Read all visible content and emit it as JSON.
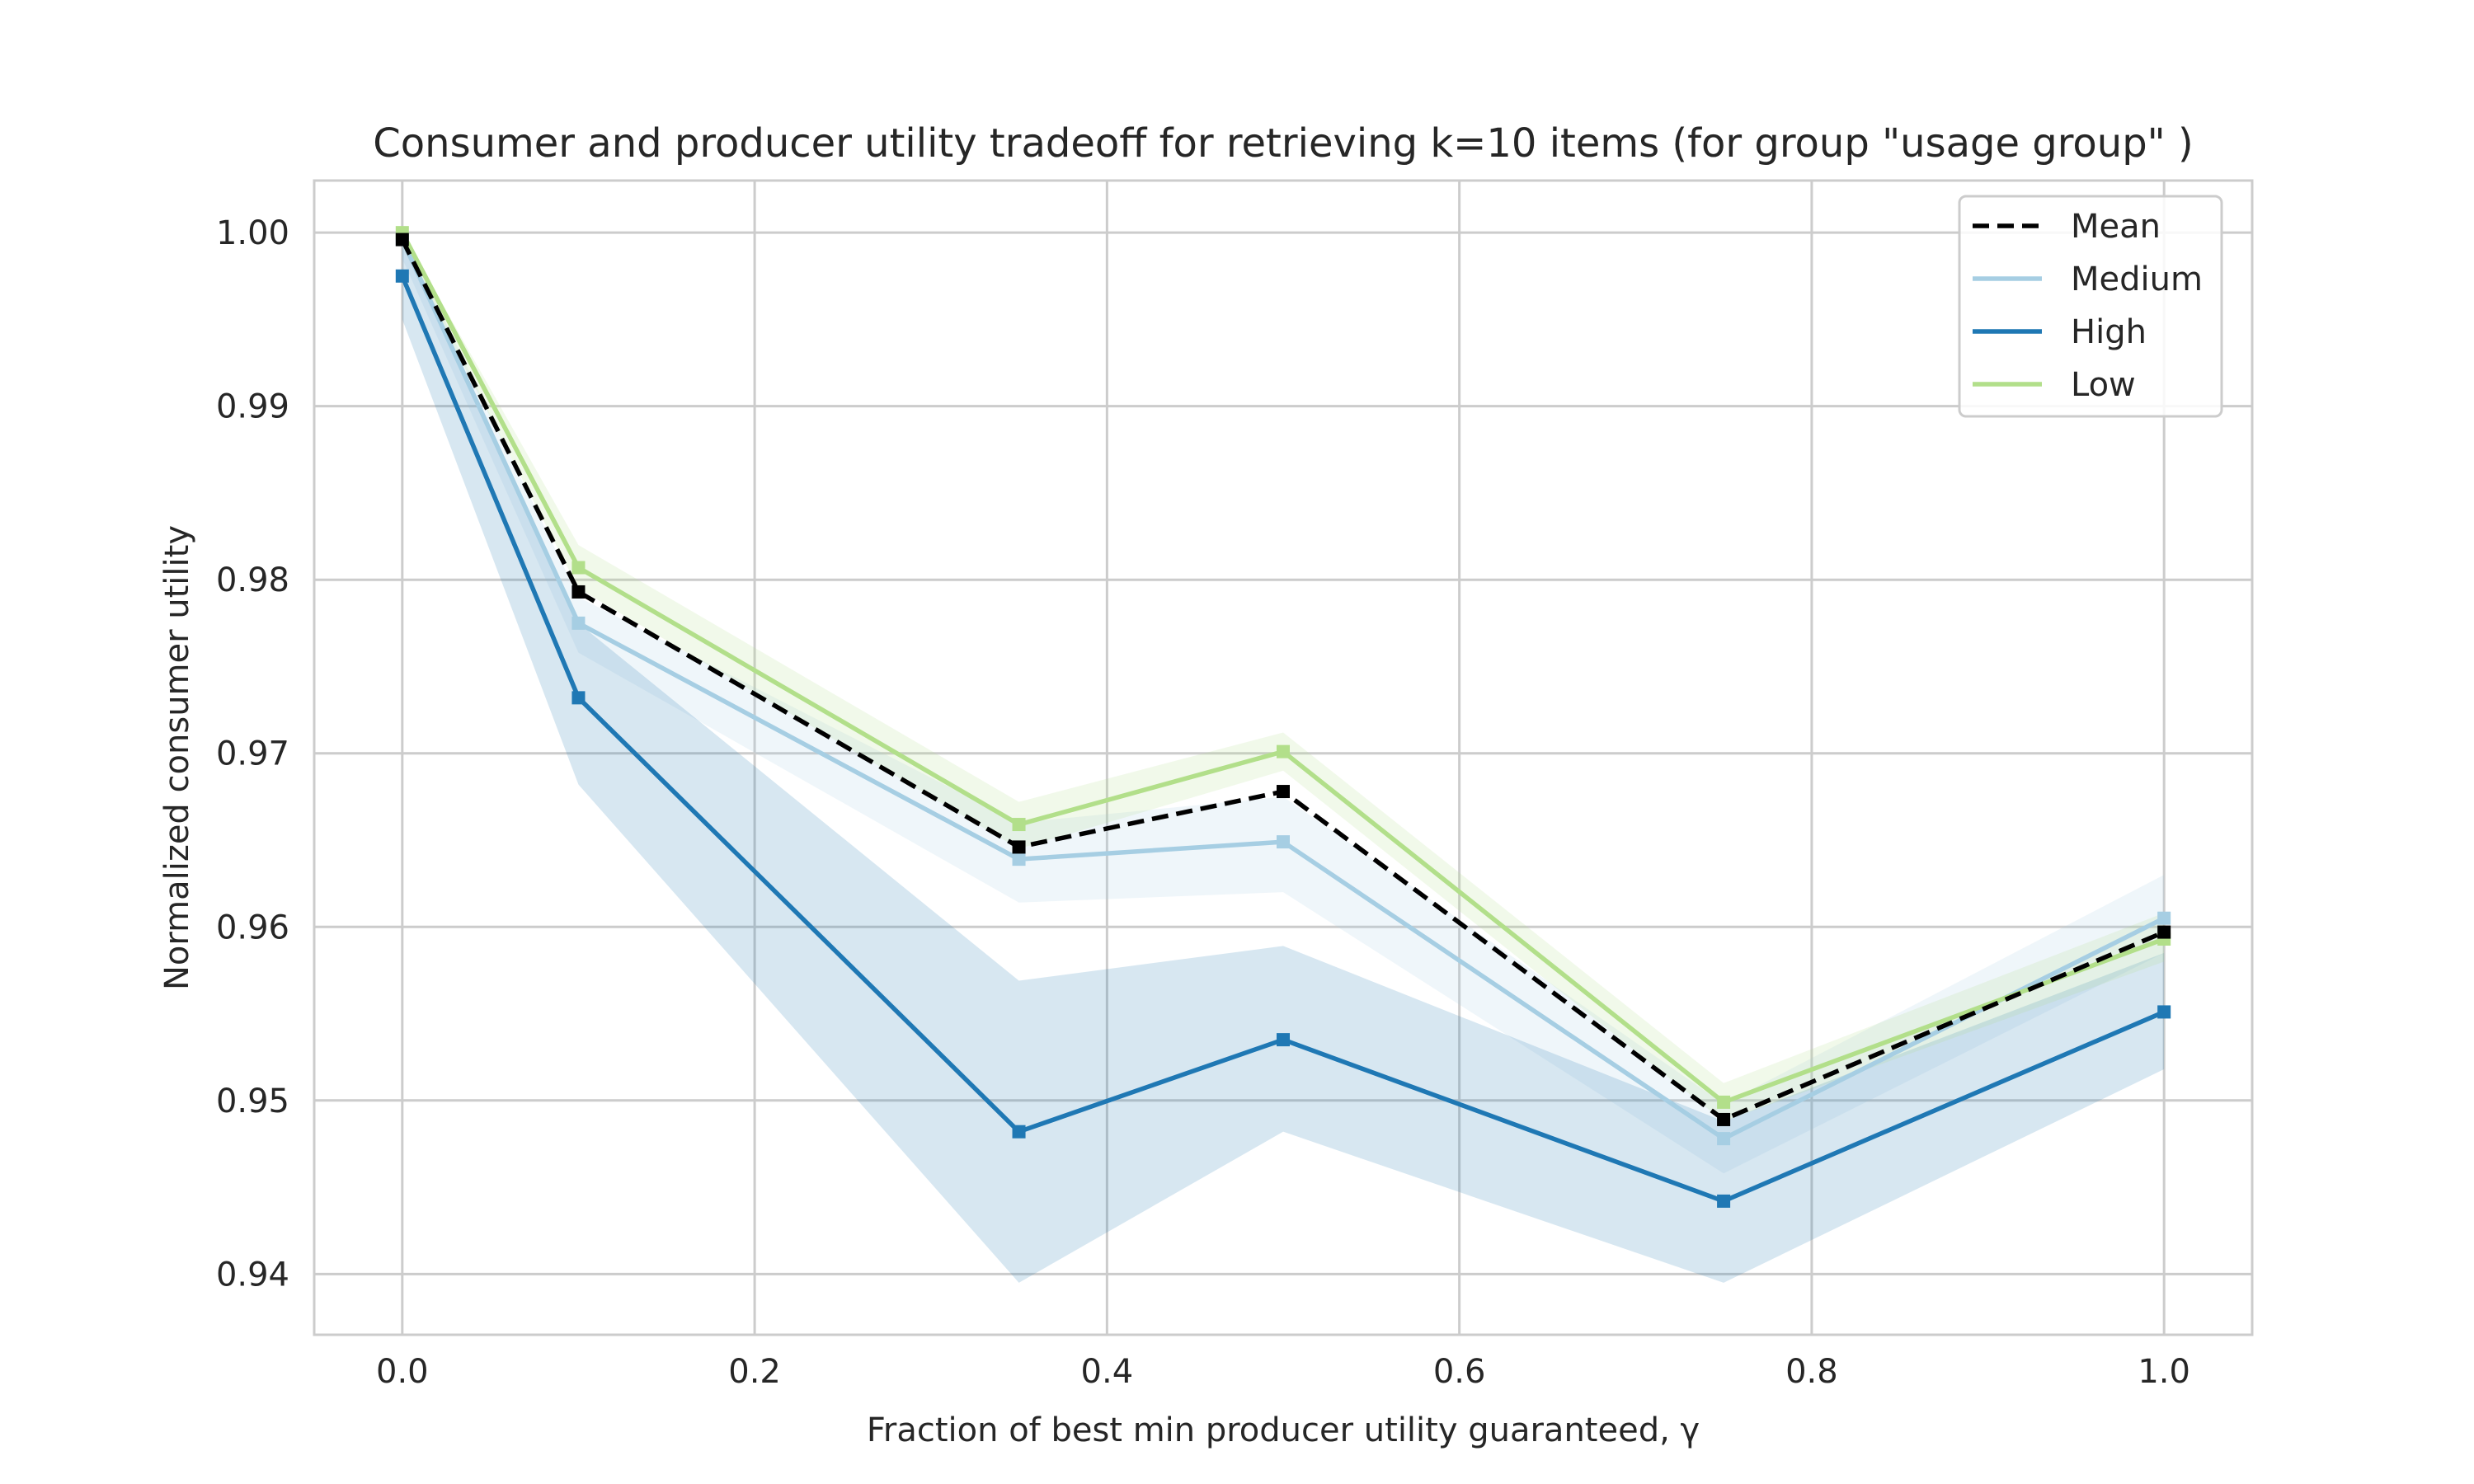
{
  "chart_data": {
    "type": "line",
    "title": "Consumer and producer utility tradeoff for retrieving k=10 items (for group \"usage group\" )",
    "xlabel": "Fraction of best min producer utility guaranteed, γ",
    "ylabel": "Normalized consumer utility",
    "xlim": [
      -0.05,
      1.05
    ],
    "ylim": [
      0.9365,
      1.003
    ],
    "x_ticks": [
      0.0,
      0.2,
      0.4,
      0.6,
      0.8,
      1.0
    ],
    "x_tick_labels": [
      "0.0",
      "0.2",
      "0.4",
      "0.6",
      "0.8",
      "1.0"
    ],
    "y_ticks": [
      0.94,
      0.95,
      0.96,
      0.97,
      0.98,
      0.99,
      1.0
    ],
    "y_tick_labels": [
      "0.94",
      "0.95",
      "0.96",
      "0.97",
      "0.98",
      "0.99",
      "1.00"
    ],
    "grid": true,
    "legend_position": "top-right",
    "x": [
      0.0,
      0.1,
      0.35,
      0.5,
      0.75,
      1.0
    ],
    "series": [
      {
        "name": "Mean",
        "color": "#000000",
        "style": "dashed",
        "values": [
          0.9996,
          0.9793,
          0.9646,
          0.9678,
          0.9489,
          0.9597
        ]
      },
      {
        "name": "Medium",
        "color": "#a6cee3",
        "style": "solid",
        "values": [
          0.9996,
          0.9775,
          0.9639,
          0.9649,
          0.9478,
          0.9605
        ],
        "band_low": [
          0.9985,
          0.9758,
          0.9614,
          0.962,
          0.9458,
          0.9585
        ],
        "band_high": [
          1.0,
          0.979,
          0.966,
          0.9675,
          0.9498,
          0.963
        ]
      },
      {
        "name": "High",
        "color": "#1f78b4",
        "style": "solid",
        "values": [
          0.9975,
          0.9732,
          0.9482,
          0.9535,
          0.9442,
          0.9551
        ],
        "band_low": [
          0.995,
          0.9682,
          0.9395,
          0.9482,
          0.9395,
          0.9518
        ],
        "band_high": [
          0.9995,
          0.9775,
          0.9569,
          0.9589,
          0.9488,
          0.9585
        ]
      },
      {
        "name": "Low",
        "color": "#b2df8a",
        "style": "solid",
        "values": [
          1.0,
          0.9807,
          0.9659,
          0.9701,
          0.9499,
          0.9593
        ],
        "band_low": [
          0.9992,
          0.9795,
          0.9645,
          0.969,
          0.9488,
          0.958
        ],
        "band_high": [
          1.0,
          0.982,
          0.9672,
          0.9712,
          0.951,
          0.9608
        ]
      }
    ]
  }
}
